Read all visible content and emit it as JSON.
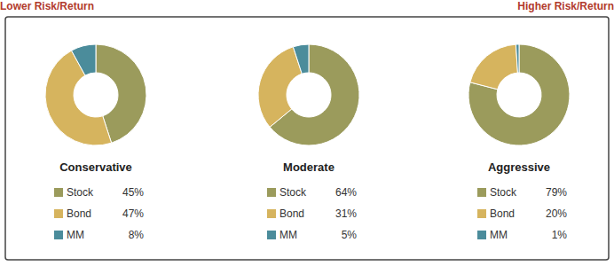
{
  "header": {
    "left": "Lower Risk/Return",
    "right": "Higher Risk/Return"
  },
  "chart_data": [
    {
      "type": "donut",
      "title": "Conservative",
      "categories": [
        "Stock",
        "Bond",
        "MM"
      ],
      "values": [
        45,
        47,
        8
      ],
      "value_labels": [
        "45%",
        "47%",
        "8%"
      ],
      "colors": [
        "#9b9b5c",
        "#d6b45e",
        "#4b8c9b"
      ],
      "legend": "bottom"
    },
    {
      "type": "donut",
      "title": "Moderate",
      "categories": [
        "Stock",
        "Bond",
        "MM"
      ],
      "values": [
        64,
        31,
        5
      ],
      "value_labels": [
        "64%",
        "31%",
        "5%"
      ],
      "colors": [
        "#9b9b5c",
        "#d6b45e",
        "#4b8c9b"
      ],
      "legend": "bottom"
    },
    {
      "type": "donut",
      "title": "Aggressive",
      "categories": [
        "Stock",
        "Bond",
        "MM"
      ],
      "values": [
        79,
        20,
        1
      ],
      "value_labels": [
        "79%",
        "20%",
        "1%"
      ],
      "colors": [
        "#9b9b5c",
        "#d6b45e",
        "#4b8c9b"
      ],
      "legend": "bottom"
    }
  ]
}
